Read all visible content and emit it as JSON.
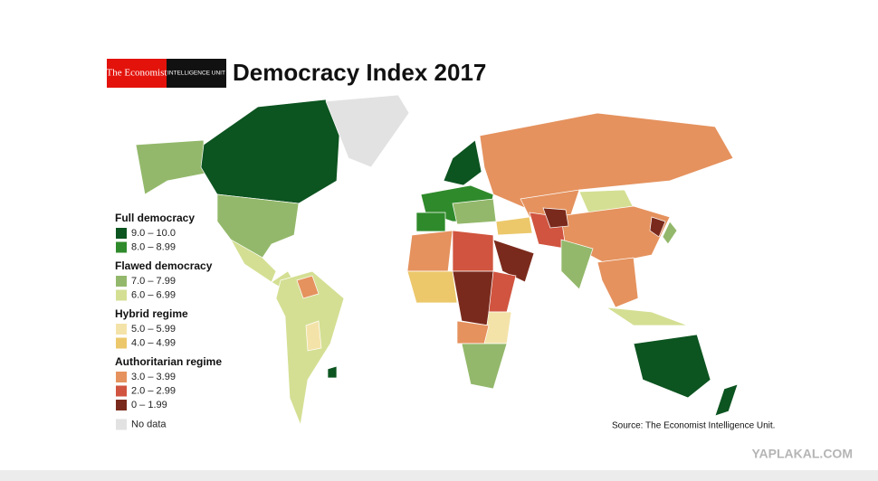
{
  "header": {
    "logo_main": "The Economist",
    "logo_side": "INTELLIGENCE UNIT",
    "title": "Democracy Index 2017"
  },
  "legend": {
    "groups": [
      {
        "title": "Full democracy",
        "items": [
          {
            "label": "9.0 – 10.0",
            "color": "#0c5420"
          },
          {
            "label": "8.0 – 8.99",
            "color": "#2f8a2b"
          }
        ]
      },
      {
        "title": "Flawed democracy",
        "items": [
          {
            "label": "7.0 – 7.99",
            "color": "#93b86b"
          },
          {
            "label": "6.0 – 6.99",
            "color": "#d4df93"
          }
        ]
      },
      {
        "title": "Hybrid regime",
        "items": [
          {
            "label": "5.0 – 5.99",
            "color": "#f4e3a9"
          },
          {
            "label": "4.0 – 4.99",
            "color": "#ecc86b"
          }
        ]
      },
      {
        "title": "Authoritarian regime",
        "items": [
          {
            "label": "3.0 – 3.99",
            "color": "#e5925e"
          },
          {
            "label": "2.0 – 2.99",
            "color": "#d0543f"
          },
          {
            "label": "0 – 1.99",
            "color": "#7a2a1c"
          }
        ]
      }
    ],
    "no_data": {
      "label": "No data",
      "color": "#e2e2e2"
    }
  },
  "source": "Source: The Economist Intelligence Unit.",
  "watermark": "YAPLAKAL.COM"
}
